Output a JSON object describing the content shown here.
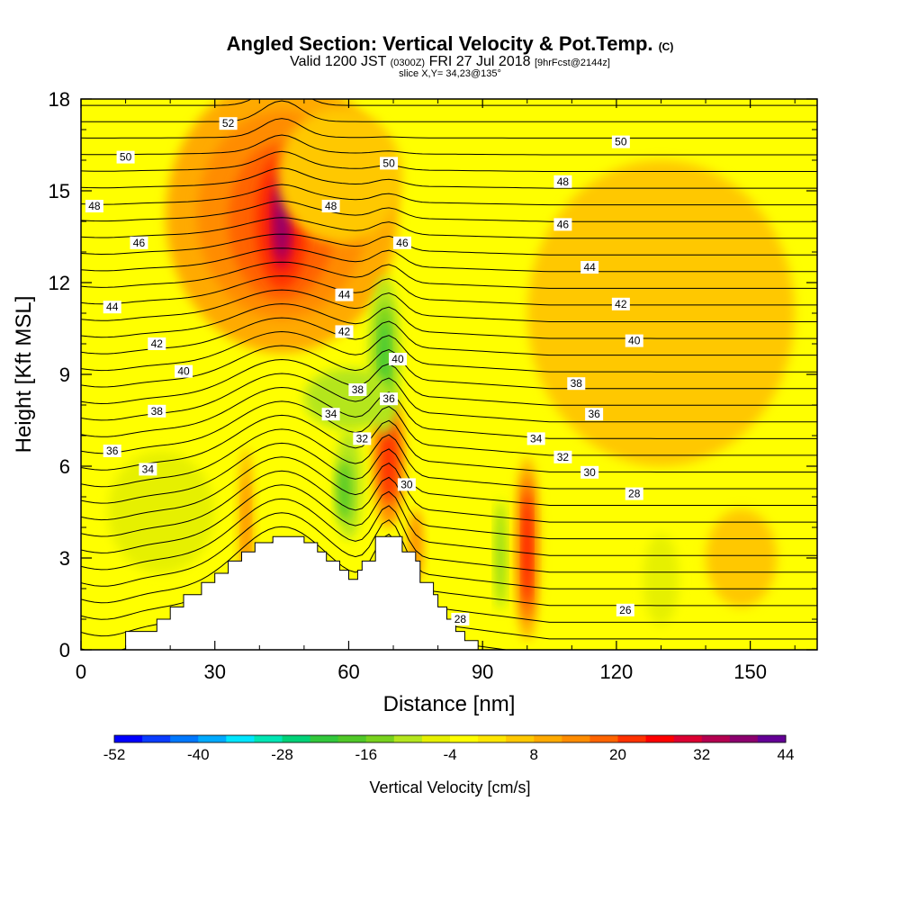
{
  "title": "Angled Section: Vertical Velocity & Pot.Temp.",
  "title_mark": "(C)",
  "subtitle_main": "Valid 1200 JST",
  "subtitle_small1": "(0300Z)",
  "subtitle_mid": "FRI 27 Jul 2018",
  "subtitle_small2": "[9hrFcst@2144z]",
  "subtitle2": "slice X,Y= 34,23@135°",
  "chart_data": {
    "type": "heatmap",
    "xlabel": "Distance [nm]",
    "ylabel": "Height [Kft MSL]",
    "xlim": [
      0,
      165
    ],
    "ylim": [
      0,
      18
    ],
    "xticks": [
      0,
      30,
      60,
      90,
      120,
      150
    ],
    "yticks": [
      0,
      3,
      6,
      9,
      12,
      15,
      18
    ],
    "colorbar": {
      "label": "Vertical Velocity [cm/s]",
      "ticks": [
        "-52",
        "-40",
        "-28",
        "-16",
        "-4",
        "8",
        "20",
        "32",
        "44"
      ],
      "colors": [
        "#0000ff",
        "#0a3cff",
        "#0078ff",
        "#00aaff",
        "#00e6ff",
        "#00e6b4",
        "#00d278",
        "#32c83c",
        "#50c828",
        "#78d21e",
        "#b4e61e",
        "#e6f000",
        "#ffff00",
        "#ffe600",
        "#ffc800",
        "#ffaa00",
        "#ff8c00",
        "#ff6400",
        "#ff3200",
        "#ff0000",
        "#dc0032",
        "#b40050",
        "#8c006e",
        "#640096"
      ]
    },
    "terrain": [
      [
        0,
        0
      ],
      [
        10,
        0
      ],
      [
        10,
        0.6
      ],
      [
        17,
        0.6
      ],
      [
        17,
        1
      ],
      [
        20,
        1
      ],
      [
        20,
        1.4
      ],
      [
        23,
        1.4
      ],
      [
        23,
        1.8
      ],
      [
        27,
        1.8
      ],
      [
        27,
        2.2
      ],
      [
        30,
        2.2
      ],
      [
        30,
        2.5
      ],
      [
        33,
        2.5
      ],
      [
        33,
        2.9
      ],
      [
        36,
        2.9
      ],
      [
        36,
        3.2
      ],
      [
        39,
        3.2
      ],
      [
        39,
        3.5
      ],
      [
        43,
        3.5
      ],
      [
        43,
        3.7
      ],
      [
        50,
        3.7
      ],
      [
        50,
        3.5
      ],
      [
        53,
        3.5
      ],
      [
        53,
        3.2
      ],
      [
        55,
        3.2
      ],
      [
        55,
        2.9
      ],
      [
        58,
        2.9
      ],
      [
        58,
        2.6
      ],
      [
        60,
        2.6
      ],
      [
        60,
        2.3
      ],
      [
        62,
        2.3
      ],
      [
        62,
        2.6
      ],
      [
        63,
        2.6
      ],
      [
        63,
        2.9
      ],
      [
        66,
        2.9
      ],
      [
        66,
        3.7
      ],
      [
        72,
        3.7
      ],
      [
        72,
        3.2
      ],
      [
        75,
        3.2
      ],
      [
        75,
        2.9
      ],
      [
        76,
        2.9
      ],
      [
        76,
        2.2
      ],
      [
        79,
        2.2
      ],
      [
        79,
        1.8
      ],
      [
        80,
        1.8
      ],
      [
        80,
        1.4
      ],
      [
        82,
        1.4
      ],
      [
        82,
        1
      ],
      [
        84,
        1
      ],
      [
        84,
        0.6
      ],
      [
        86,
        0.6
      ],
      [
        86,
        0.3
      ],
      [
        89,
        0.3
      ],
      [
        89,
        0
      ],
      [
        165,
        0
      ]
    ],
    "pot_temp_labels": [
      {
        "v": "52",
        "x": 33,
        "y": 17.2
      },
      {
        "v": "50",
        "x": 10,
        "y": 16.1
      },
      {
        "v": "50",
        "x": 69,
        "y": 15.9
      },
      {
        "v": "50",
        "x": 121,
        "y": 16.6
      },
      {
        "v": "48",
        "x": 3,
        "y": 14.5
      },
      {
        "v": "48",
        "x": 56,
        "y": 14.5
      },
      {
        "v": "48",
        "x": 108,
        "y": 15.3
      },
      {
        "v": "46",
        "x": 13,
        "y": 13.3
      },
      {
        "v": "46",
        "x": 72,
        "y": 13.3
      },
      {
        "v": "46",
        "x": 108,
        "y": 13.9
      },
      {
        "v": "44",
        "x": 7,
        "y": 11.2
      },
      {
        "v": "44",
        "x": 59,
        "y": 11.6
      },
      {
        "v": "44",
        "x": 114,
        "y": 12.5
      },
      {
        "v": "42",
        "x": 17,
        "y": 10
      },
      {
        "v": "42",
        "x": 59,
        "y": 10.4
      },
      {
        "v": "42",
        "x": 121,
        "y": 11.3
      },
      {
        "v": "40",
        "x": 23,
        "y": 9.1
      },
      {
        "v": "40",
        "x": 71,
        "y": 9.5
      },
      {
        "v": "40",
        "x": 124,
        "y": 10.1
      },
      {
        "v": "38",
        "x": 17,
        "y": 7.8
      },
      {
        "v": "38",
        "x": 62,
        "y": 8.5
      },
      {
        "v": "38",
        "x": 111,
        "y": 8.7
      },
      {
        "v": "36",
        "x": 7,
        "y": 6.5
      },
      {
        "v": "36",
        "x": 69,
        "y": 8.2
      },
      {
        "v": "36",
        "x": 115,
        "y": 7.7
      },
      {
        "v": "34",
        "x": 15,
        "y": 5.9
      },
      {
        "v": "34",
        "x": 56,
        "y": 7.7
      },
      {
        "v": "34",
        "x": 102,
        "y": 6.9
      },
      {
        "v": "32",
        "x": 63,
        "y": 6.9
      },
      {
        "v": "32",
        "x": 108,
        "y": 6.3
      },
      {
        "v": "30",
        "x": 73,
        "y": 5.4
      },
      {
        "v": "30",
        "x": 114,
        "y": 5.8
      },
      {
        "v": "28",
        "x": 85,
        "y": 1
      },
      {
        "v": "28",
        "x": 124,
        "y": 5.1
      },
      {
        "v": "26",
        "x": 122,
        "y": 1.3
      }
    ],
    "cells": [
      {
        "x": 45,
        "y": 14.2,
        "rx": 26,
        "ry": 4.5,
        "c": "#ffaa00"
      },
      {
        "x": 45,
        "y": 14.2,
        "rx": 19,
        "ry": 3.4,
        "c": "#ff8c00"
      },
      {
        "x": 45,
        "y": 14,
        "rx": 12,
        "ry": 2.6,
        "c": "#ff6400"
      },
      {
        "x": 45,
        "y": 14,
        "rx": 6,
        "ry": 2.2,
        "c": "#ff3200"
      },
      {
        "x": 45,
        "y": 14,
        "rx": 3,
        "ry": 1.6,
        "c": "#dc0032"
      },
      {
        "x": 45,
        "y": 14,
        "rx": 1.4,
        "ry": 1.2,
        "c": "#8c006e"
      },
      {
        "x": 130,
        "y": 11,
        "rx": 30,
        "ry": 5,
        "c": "#ffc800"
      },
      {
        "x": 58,
        "y": 15.5,
        "rx": 14,
        "ry": 2.2,
        "c": "#ffc800"
      },
      {
        "x": 69,
        "y": 6.2,
        "rx": 3.5,
        "ry": 2.2,
        "c": "#ff8c00"
      },
      {
        "x": 69,
        "y": 6.2,
        "rx": 2,
        "ry": 1.4,
        "c": "#ff3200"
      },
      {
        "x": 100,
        "y": 3.3,
        "rx": 2.8,
        "ry": 3,
        "c": "#ffaa00"
      },
      {
        "x": 100,
        "y": 3.3,
        "rx": 1.6,
        "ry": 2.4,
        "c": "#ff6400"
      },
      {
        "x": 100,
        "y": 3.3,
        "rx": 0.8,
        "ry": 1.8,
        "c": "#ff0000"
      },
      {
        "x": 68,
        "y": 9.6,
        "rx": 3.5,
        "ry": 2.6,
        "c": "#b4e61e"
      },
      {
        "x": 68,
        "y": 9.6,
        "rx": 2,
        "ry": 1.8,
        "c": "#78d21e"
      },
      {
        "x": 68,
        "y": 9.6,
        "rx": 0.9,
        "ry": 1.2,
        "c": "#32c83c"
      },
      {
        "x": 60,
        "y": 8.2,
        "rx": 10,
        "ry": 1,
        "c": "#b4e61e"
      },
      {
        "x": 60,
        "y": 5.4,
        "rx": 3,
        "ry": 1.8,
        "c": "#b4e61e"
      },
      {
        "x": 59,
        "y": 5.2,
        "rx": 1.5,
        "ry": 1,
        "c": "#50c828"
      },
      {
        "x": 94,
        "y": 3.1,
        "rx": 1,
        "ry": 1.8,
        "c": "#78d21e"
      },
      {
        "x": 18,
        "y": 4.5,
        "rx": 12,
        "ry": 2,
        "c": "#e6f000"
      },
      {
        "x": 130,
        "y": 2.3,
        "rx": 4,
        "ry": 1.5,
        "c": "#e6f000"
      },
      {
        "x": 148,
        "y": 3,
        "rx": 8,
        "ry": 1.6,
        "c": "#ffc800"
      },
      {
        "x": 37,
        "y": 4,
        "rx": 1.6,
        "ry": 2.6,
        "c": "#ffaa00"
      },
      {
        "x": 37,
        "y": 4,
        "rx": 0.7,
        "ry": 1.6,
        "c": "#ff8c00"
      },
      {
        "x": 75,
        "y": 3.4,
        "rx": 1.6,
        "ry": 1.2,
        "c": "#ff8c00"
      }
    ]
  }
}
